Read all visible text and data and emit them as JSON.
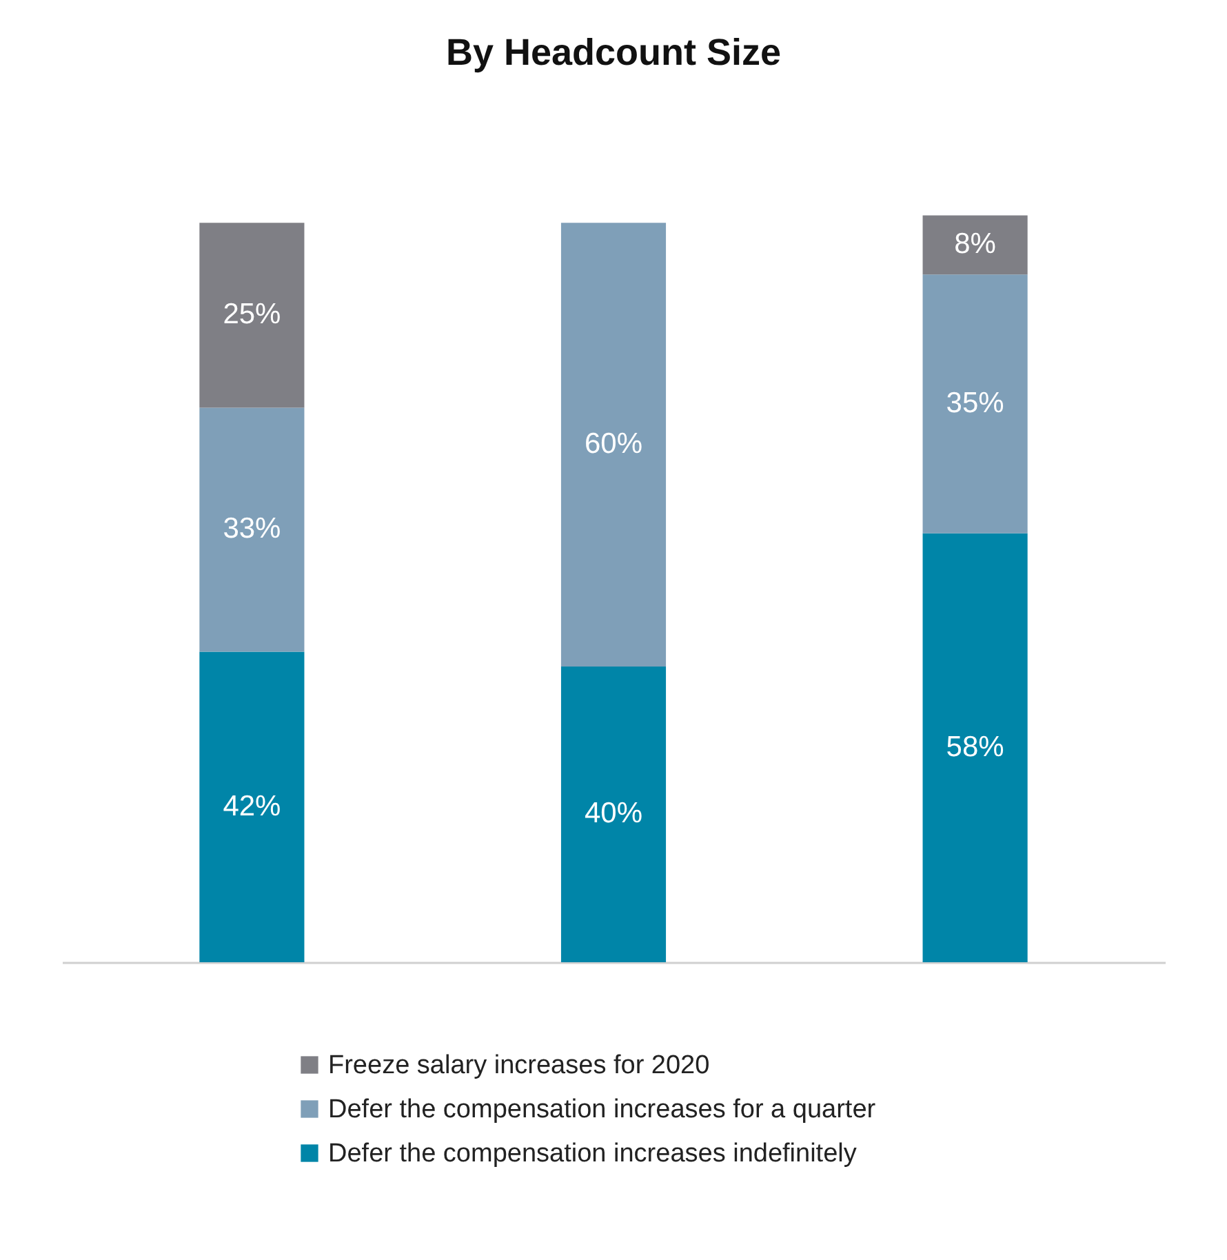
{
  "chart_data": {
    "type": "bar",
    "title": "By Headcount Size",
    "categories": [
      null,
      null,
      null
    ],
    "stacked": true,
    "legend": "bottom",
    "tick_labels": false,
    "series": [
      {
        "name": "Defer the compensation increases indefinitely",
        "color": "#0085a8",
        "values": [
          42,
          40,
          58
        ],
        "value_labels": [
          "42%",
          "40%",
          "58%"
        ]
      },
      {
        "name": "Defer the compensation increases for a quarter",
        "color": "#7f9fb8",
        "values": [
          33,
          60,
          35
        ],
        "value_labels": [
          "33%",
          "60%",
          "35%"
        ]
      },
      {
        "name": "Freeze salary increases for 2020",
        "color": "#7f7f85",
        "values": [
          25,
          null,
          8
        ],
        "value_labels": [
          "25%",
          null,
          "8%"
        ]
      }
    ]
  }
}
